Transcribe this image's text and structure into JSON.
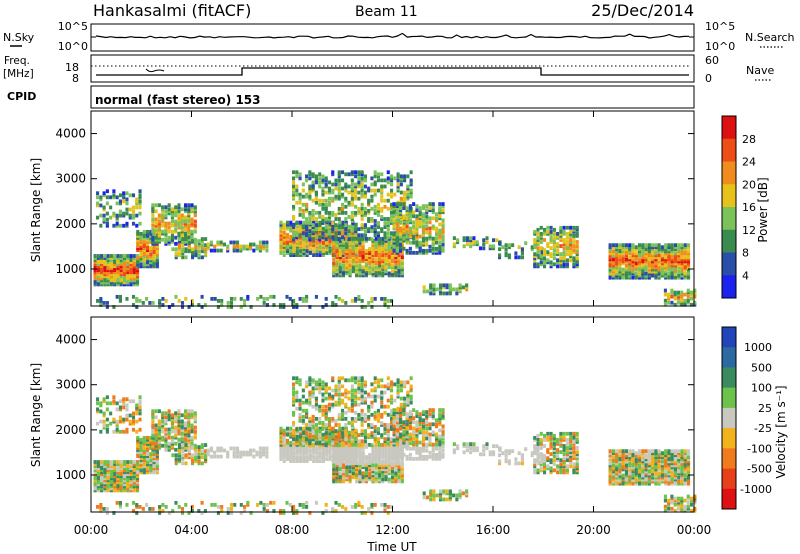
{
  "header": {
    "station": "Hankasalmi (fitACF)",
    "beam": "Beam 11",
    "date": "25/Dec/2014"
  },
  "nsky_panel": {
    "label": "N.Sky",
    "right_label": "N.Search",
    "left_ticks": [
      "10^5",
      "10^0"
    ],
    "right_ticks": [
      "10^5",
      "10^0"
    ]
  },
  "freq_panel": {
    "label_top": "Freq.",
    "label_unit": "[MHz]",
    "left_ticks": [
      "18",
      "8"
    ],
    "right_ticks": [
      "60",
      "0"
    ],
    "right_label": "Nave"
  },
  "cpid": {
    "label": "CPID",
    "value": "normal (fast stereo) 153"
  },
  "chart_data": [
    {
      "type": "heatmap",
      "name": "Power",
      "ylabel": "Slant Range [km]",
      "xlabel": "Time UT",
      "xlim": [
        "00:00",
        "24:00"
      ],
      "ylim": [
        180,
        4500
      ],
      "y_ticks": [
        1000,
        2000,
        3000,
        4000
      ],
      "colorbar": {
        "label": "Power [dB]",
        "ticks": [
          "4",
          "8",
          "12",
          "16",
          "20",
          "24",
          "28"
        ],
        "colors": [
          "#1c22ee",
          "#2a4fa8",
          "#3a8b4f",
          "#7cc25a",
          "#e6c21a",
          "#f08c1e",
          "#ee4d17",
          "#dd1111"
        ]
      }
    },
    {
      "type": "heatmap",
      "name": "Velocity",
      "ylabel": "Slant Range [km]",
      "xlabel": "Time UT",
      "xlim": [
        "00:00",
        "24:00"
      ],
      "ylim": [
        180,
        4500
      ],
      "y_ticks": [
        1000,
        2000,
        3000,
        4000
      ],
      "x_ticks": [
        "00:00",
        "04:00",
        "08:00",
        "12:00",
        "16:00",
        "20:00",
        "00:00"
      ],
      "colorbar": {
        "label": "Velocity [m s⁻¹]",
        "ticks": [
          "1000",
          "500",
          "100",
          "25",
          "-25",
          "-100",
          "-500",
          "-1000"
        ],
        "colors": [
          "#2244bb",
          "#2a6aa0",
          "#3a8b5e",
          "#6cc24a",
          "#c8c8c0",
          "#f2b21c",
          "#f07a1e",
          "#e8401a",
          "#dd1111"
        ]
      }
    }
  ],
  "colors": {
    "ground_scatter": "#c8c8c0"
  }
}
